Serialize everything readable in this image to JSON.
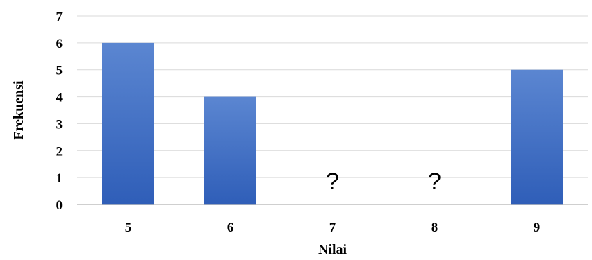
{
  "chart_data": {
    "type": "bar",
    "categories": [
      "5",
      "6",
      "7",
      "8",
      "9"
    ],
    "values": [
      6,
      4,
      null,
      null,
      5
    ],
    "bar_labels": [
      "",
      "",
      "?",
      "?",
      ""
    ],
    "xlabel": "Nilai",
    "ylabel": "Frekuensi",
    "ylim": [
      0,
      7
    ],
    "yticks": [
      "0",
      "1",
      "2",
      "3",
      "4",
      "5",
      "6",
      "7"
    ],
    "grid": true,
    "legend": "none",
    "colors": {
      "bar_top": "#5b86d1",
      "bar_bottom": "#2f5eb8",
      "grid": "#d9d9d9",
      "axis": "#bfbfbf"
    }
  }
}
